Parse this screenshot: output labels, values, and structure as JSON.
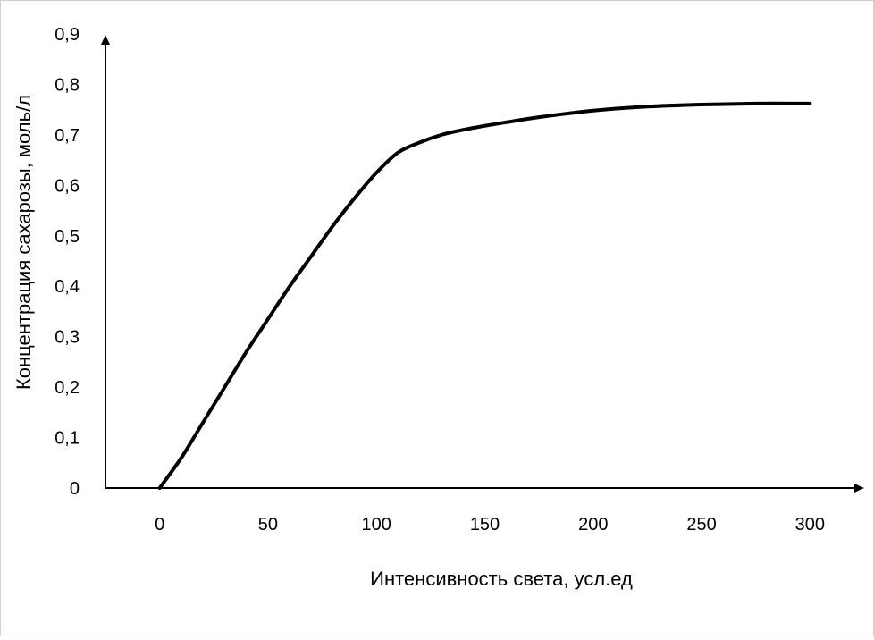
{
  "chart_data": {
    "type": "line",
    "title": "",
    "xlabel": "Интенсивность света, усл.ед",
    "ylabel": "Концентрация сахарозы, моль/л",
    "xlim": [
      -25,
      325
    ],
    "ylim": [
      0,
      0.9
    ],
    "x_ticks": [
      0,
      50,
      100,
      150,
      200,
      250,
      300
    ],
    "x_tick_labels": [
      "0",
      "50",
      "100",
      "150",
      "200",
      "250",
      "300"
    ],
    "y_ticks": [
      0,
      0.1,
      0.2,
      0.3,
      0.4,
      0.5,
      0.6,
      0.7,
      0.8,
      0.9
    ],
    "y_tick_labels": [
      "0",
      "0,1",
      "0,2",
      "0,3",
      "0,4",
      "0,5",
      "0,6",
      "0,7",
      "0,8",
      "0,9"
    ],
    "grid": false,
    "legend": "none",
    "series": [
      {
        "color": "#000000",
        "x": [
          0,
          10,
          20,
          30,
          40,
          50,
          60,
          70,
          80,
          90,
          100,
          110,
          120,
          130,
          140,
          150,
          160,
          175,
          200,
          225,
          250,
          275,
          300
        ],
        "y": [
          0,
          0.06,
          0.13,
          0.2,
          0.27,
          0.335,
          0.4,
          0.46,
          0.52,
          0.575,
          0.625,
          0.665,
          0.685,
          0.7,
          0.71,
          0.718,
          0.725,
          0.735,
          0.748,
          0.756,
          0.76,
          0.762,
          0.762
        ]
      }
    ]
  }
}
